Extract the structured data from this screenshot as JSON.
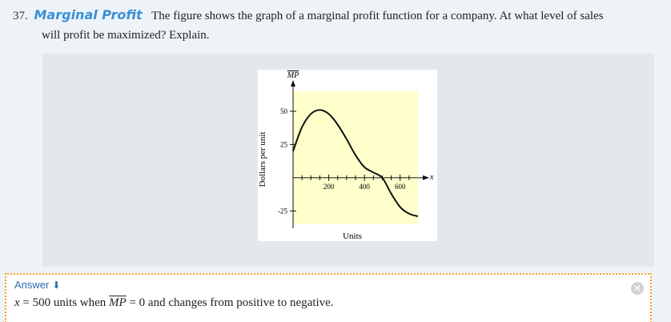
{
  "problem": {
    "number": "37.",
    "title": "Marginal Profit",
    "text_line1": "The figure shows the graph of a marginal profit function for a company. At what level of sales",
    "text_line2": "will profit be maximized? Explain."
  },
  "chart_data": {
    "type": "line",
    "y_axis_title": "MP",
    "ylabel": "Dollars per unit",
    "xlabel": "Units",
    "x_axis_var": "x",
    "x_ticks": [
      200,
      400,
      600
    ],
    "y_ticks": [
      50,
      25,
      -25
    ],
    "xlim": [
      0,
      700
    ],
    "ylim": [
      -35,
      65
    ],
    "series": [
      {
        "x": [
          0,
          50,
          100,
          150,
          200,
          250,
          300,
          350,
          400,
          450,
          500,
          550,
          600,
          650,
          700
        ],
        "values": [
          20,
          38,
          48,
          51,
          48,
          40,
          29,
          17,
          8,
          4,
          0,
          -12,
          -22,
          -27,
          -29
        ]
      }
    ],
    "colors": {
      "plot_background": "#ffffcc",
      "curve": "#111111"
    }
  },
  "answer": {
    "label": "Answer",
    "text_x": "x",
    "text_eq": " = 500 units when ",
    "text_mp": "MP",
    "text_rest": " = 0 and changes from positive to negative."
  },
  "colors": {
    "title_accent": "#3a8fd6",
    "answer_border": "#f0a020"
  },
  "icons": {
    "answer_toggle": "arrow-down-icon",
    "close": "close-icon"
  }
}
